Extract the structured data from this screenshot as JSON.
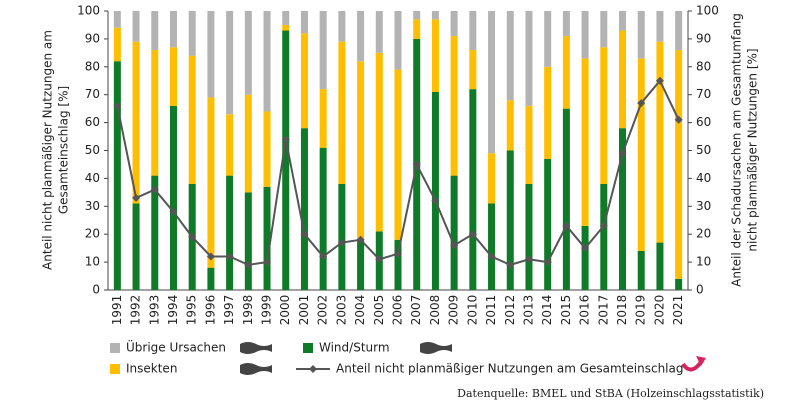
{
  "chart_data": {
    "type": "bar",
    "stacked": true,
    "categories": [
      "1991",
      "1992",
      "1993",
      "1994",
      "1995",
      "1996",
      "1997",
      "1998",
      "1999",
      "2000",
      "2001",
      "2002",
      "2003",
      "2004",
      "2005",
      "2006",
      "2007",
      "2008",
      "2009",
      "2010",
      "2011",
      "2012",
      "2013",
      "2014",
      "2015",
      "2016",
      "2017",
      "2018",
      "2019",
      "2020",
      "2021"
    ],
    "ylabel": [
      "Anteil nicht planmäßiger Nutzungen am",
      "Gesamteinschlag [%]"
    ],
    "y2label": [
      "Anteil der Schadursachen am Gesamtumfang",
      "nicht planmäßiger Nutzungen [%]"
    ],
    "ylim": [
      0,
      100
    ],
    "yticks": [
      0,
      10,
      20,
      30,
      40,
      50,
      60,
      70,
      80,
      90,
      100
    ],
    "y2lim": [
      0,
      100
    ],
    "y2ticks": [
      0,
      10,
      20,
      30,
      40,
      50,
      60,
      70,
      80,
      90,
      100
    ],
    "grid": false,
    "series": [
      {
        "name": "Wind/Sturm",
        "color": "#0f7a27",
        "axis": "y2",
        "values": [
          82,
          31,
          41,
          66,
          38,
          8,
          41,
          35,
          37,
          93,
          58,
          51,
          38,
          18,
          21,
          18,
          90,
          71,
          41,
          72,
          31,
          50,
          38,
          47,
          65,
          23,
          38,
          58,
          14,
          17,
          4
        ]
      },
      {
        "name": "Insekten",
        "color": "#ffbe00",
        "axis": "y2",
        "values": [
          12,
          58,
          45,
          21,
          46,
          61,
          22,
          35,
          27,
          2,
          34,
          21,
          51,
          64,
          64,
          61,
          7,
          26,
          50,
          14,
          18,
          18,
          28,
          33,
          26,
          60,
          49,
          35,
          69,
          72,
          82
        ]
      },
      {
        "name": "Übrige Ursachen",
        "color": "#b3b3b3",
        "axis": "y2",
        "values": [
          6,
          11,
          14,
          13,
          16,
          31,
          37,
          30,
          36,
          5,
          8,
          28,
          11,
          18,
          15,
          21,
          3,
          3,
          9,
          14,
          51,
          32,
          34,
          20,
          9,
          17,
          13,
          7,
          17,
          11,
          14
        ]
      },
      {
        "name": "Anteil nicht planmäßiger Nutzungen am Gesamteinschlag",
        "type": "line",
        "color": "#555555",
        "values": [
          66,
          33,
          36,
          28,
          19,
          12,
          12,
          9,
          10,
          54,
          20,
          12,
          17,
          18,
          11,
          13,
          45,
          32,
          16,
          20,
          12,
          9,
          11,
          10,
          23,
          15,
          23,
          49,
          67,
          75,
          61
        ]
      }
    ],
    "source": "Datenquelle: BMEL und StBA (Holzeinschlagsstatistik)"
  }
}
